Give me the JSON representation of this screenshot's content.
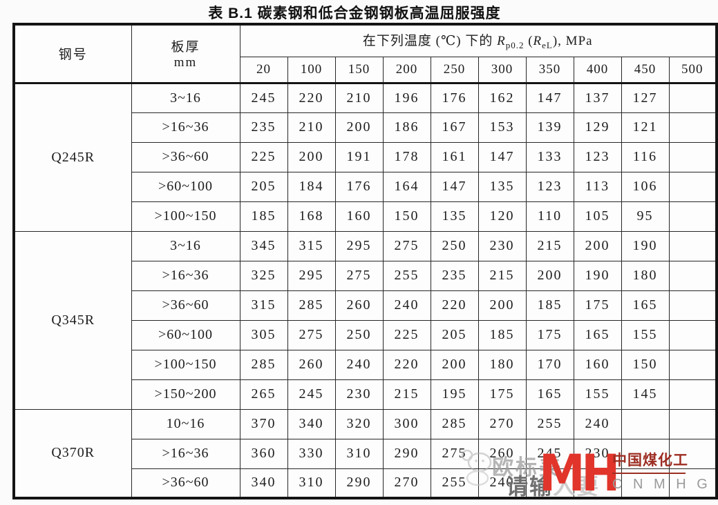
{
  "title": "表 B.1  碳素钢和低合金钢钢板高温屈服强度",
  "table": {
    "header": {
      "steel_grade": "钢号",
      "thickness_label": "板厚",
      "thickness_unit": "mm",
      "temp_prefix": "在下列温度 (℃) 下的 ",
      "symbol_main": "R",
      "symbol_main_sub": "p0.2",
      "symbol_paren_open": " (",
      "symbol_alt": "R",
      "symbol_alt_sub": "eL",
      "symbol_suffix": "), MPa",
      "temps": [
        "20",
        "100",
        "150",
        "200",
        "250",
        "300",
        "350",
        "400",
        "450",
        "500"
      ]
    },
    "groups": [
      {
        "grade": "Q245R",
        "rows": [
          {
            "thickness": "3~16",
            "values": [
              "245",
              "220",
              "210",
              "196",
              "176",
              "162",
              "147",
              "137",
              "127",
              ""
            ]
          },
          {
            "thickness": ">16~36",
            "values": [
              "235",
              "210",
              "200",
              "186",
              "167",
              "153",
              "139",
              "129",
              "121",
              ""
            ]
          },
          {
            "thickness": ">36~60",
            "values": [
              "225",
              "200",
              "191",
              "178",
              "161",
              "147",
              "133",
              "123",
              "116",
              ""
            ]
          },
          {
            "thickness": ">60~100",
            "values": [
              "205",
              "184",
              "176",
              "164",
              "147",
              "135",
              "123",
              "113",
              "106",
              ""
            ]
          },
          {
            "thickness": ">100~150",
            "values": [
              "185",
              "168",
              "160",
              "150",
              "135",
              "120",
              "110",
              "105",
              "95",
              ""
            ]
          }
        ]
      },
      {
        "grade": "Q345R",
        "rows": [
          {
            "thickness": "3~16",
            "values": [
              "345",
              "315",
              "295",
              "275",
              "250",
              "230",
              "215",
              "200",
              "190",
              ""
            ]
          },
          {
            "thickness": ">16~36",
            "values": [
              "325",
              "295",
              "275",
              "255",
              "235",
              "215",
              "200",
              "190",
              "180",
              ""
            ]
          },
          {
            "thickness": ">36~60",
            "values": [
              "315",
              "285",
              "260",
              "240",
              "220",
              "200",
              "185",
              "175",
              "165",
              ""
            ]
          },
          {
            "thickness": ">60~100",
            "values": [
              "305",
              "275",
              "250",
              "225",
              "205",
              "185",
              "175",
              "165",
              "155",
              ""
            ]
          },
          {
            "thickness": ">100~150",
            "values": [
              "285",
              "260",
              "240",
              "220",
              "200",
              "180",
              "170",
              "160",
              "150",
              ""
            ]
          },
          {
            "thickness": ">150~200",
            "values": [
              "265",
              "245",
              "230",
              "215",
              "195",
              "175",
              "165",
              "155",
              "145",
              ""
            ]
          }
        ]
      },
      {
        "grade": "Q370R",
        "rows": [
          {
            "thickness": "10~16",
            "values": [
              "370",
              "340",
              "320",
              "300",
              "285",
              "270",
              "255",
              "240",
              "",
              ""
            ]
          },
          {
            "thickness": ">16~36",
            "values": [
              "360",
              "330",
              "310",
              "290",
              "275",
              "260",
              "245",
              "230",
              "",
              ""
            ]
          },
          {
            "thickness": ">36~60",
            "values": [
              "340",
              "310",
              "290",
              "270",
              "255",
              "240",
              "",
              "",
              "",
              ""
            ]
          }
        ]
      }
    ]
  },
  "watermark": {
    "ghost_text": "欧标美",
    "input_hint_strong": "请输",
    "input_hint_faint": "入要",
    "logo_text": "MH",
    "brand_cn": "中国煤化工",
    "brand_en": "C N M H G"
  }
}
